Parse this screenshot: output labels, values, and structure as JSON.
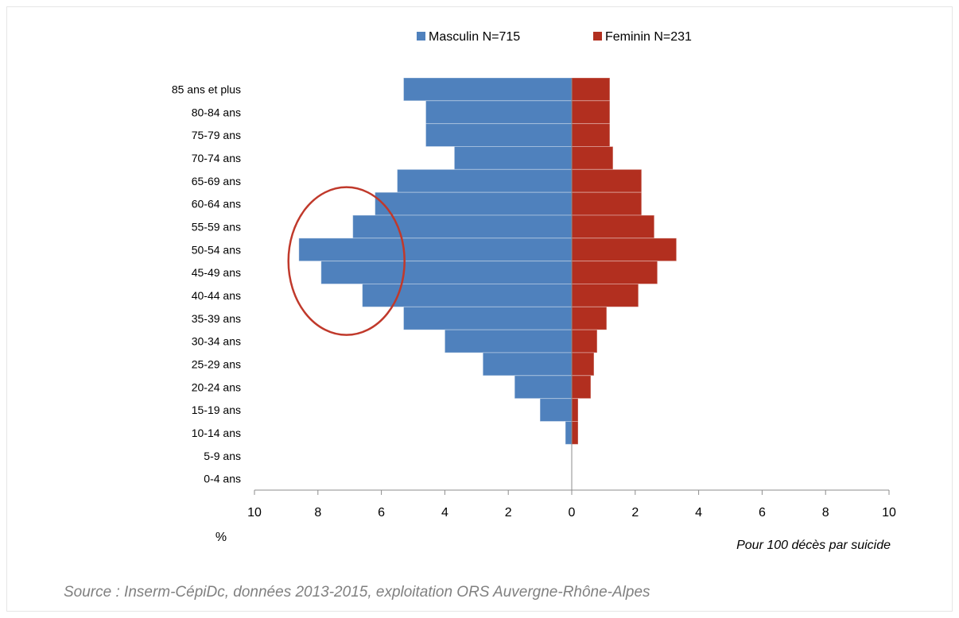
{
  "chart_data": {
    "type": "bar",
    "orientation": "horizontal",
    "layout": "population-pyramid",
    "categories": [
      "85 ans et plus",
      "80-84 ans",
      "75-79 ans",
      "70-74 ans",
      "65-69 ans",
      "60-64 ans",
      "55-59 ans",
      "50-54 ans",
      "45-49 ans",
      "40-44 ans",
      "35-39 ans",
      "30-34 ans",
      "25-29 ans",
      "20-24 ans",
      "15-19 ans",
      "10-14 ans",
      "5-9 ans",
      "0-4 ans"
    ],
    "series": [
      {
        "name": "Masculin N=715",
        "color": "#4f81bd",
        "side": "left",
        "values": [
          5.3,
          4.6,
          4.6,
          3.7,
          5.5,
          6.2,
          6.9,
          8.6,
          7.9,
          6.6,
          5.3,
          4.0,
          2.8,
          1.8,
          1.0,
          0.2,
          0.0,
          0.0
        ]
      },
      {
        "name": "Feminin N=231",
        "color": "#b22f1f",
        "side": "right",
        "values": [
          1.2,
          1.2,
          1.2,
          1.3,
          2.2,
          2.2,
          2.6,
          3.3,
          2.7,
          2.1,
          1.1,
          0.8,
          0.7,
          0.6,
          0.2,
          0.2,
          0.0,
          0.0
        ]
      }
    ],
    "x_ticks": [
      "10",
      "8",
      "6",
      "4",
      "2",
      "0",
      "2",
      "4",
      "6",
      "8",
      "10"
    ],
    "xlim": [
      -10,
      10
    ],
    "xlabel": "Pour 100 décès par suicide",
    "xunit": "%",
    "legend_position": "top",
    "grid": false,
    "annotation": {
      "type": "ellipse",
      "color": "#c0392b",
      "around": [
        "55-59 ans",
        "50-54 ans",
        "45-49 ans",
        "40-44 ans"
      ]
    }
  },
  "source": "Source : Inserm-CépiDc, données 2013-2015,  exploitation ORS Auvergne-Rhône-Alpes"
}
